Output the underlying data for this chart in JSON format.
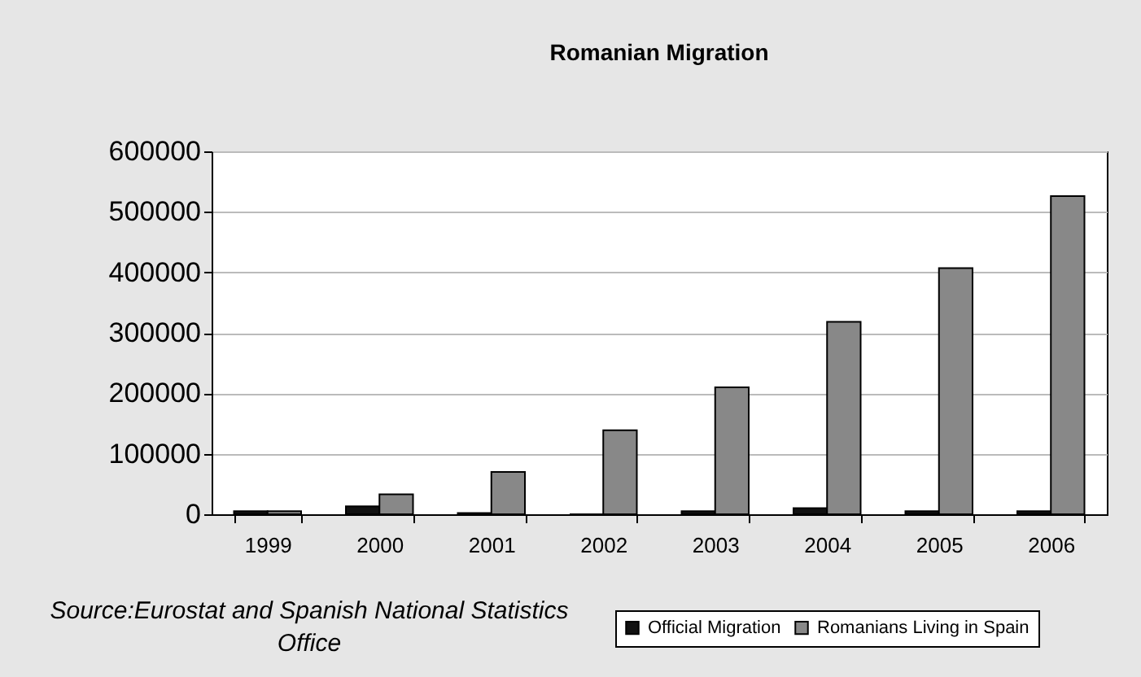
{
  "chart_data": {
    "type": "bar",
    "title": "Romanian Migration",
    "categories": [
      "1999",
      "2000",
      "2001",
      "2002",
      "2003",
      "2004",
      "2005",
      "2006"
    ],
    "series": [
      {
        "name": "Official Migration",
        "color": "#111111",
        "values": [
          5000,
          13000,
          2000,
          0,
          5000,
          10000,
          5000,
          5000
        ]
      },
      {
        "name": "Romanians Living in Spain",
        "color": "#888888",
        "values": [
          5000,
          33000,
          70000,
          139000,
          210000,
          318000,
          407000,
          526000
        ]
      }
    ],
    "ylim": [
      0,
      600000
    ],
    "yticks": [
      0,
      100000,
      200000,
      300000,
      400000,
      500000,
      600000
    ],
    "grid": "y",
    "legend": "bottom right",
    "annotations": [
      "Source:Eurostat and Spanish National Statistics Office"
    ]
  }
}
